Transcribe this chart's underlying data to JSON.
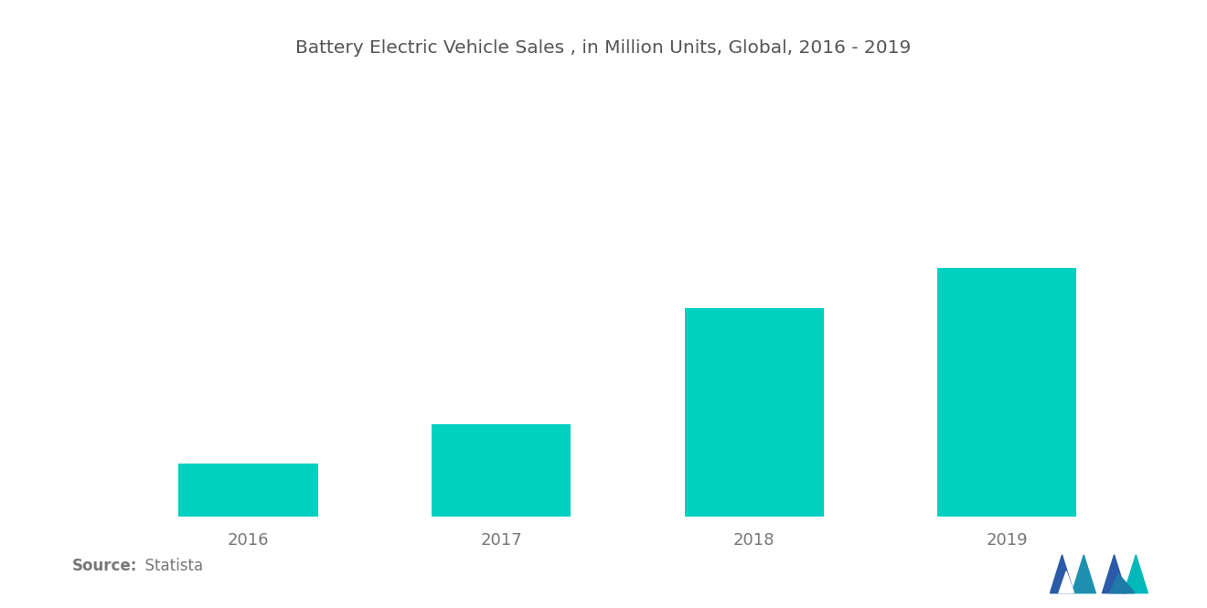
{
  "title": "Battery Electric Vehicle Sales , in Million Units, Global, 2016 - 2019",
  "categories": [
    "2016",
    "2017",
    "2018",
    "2019"
  ],
  "values": [
    0.32,
    0.56,
    1.26,
    1.5
  ],
  "bar_color": "#00D0C0",
  "background_color": "#ffffff",
  "title_fontsize": 14.5,
  "title_color": "#555555",
  "tick_label_fontsize": 13,
  "tick_label_color": "#777777",
  "source_bold": "Source:",
  "source_normal": "  Statista",
  "source_fontsize": 12,
  "source_color": "#777777",
  "ylim": [
    0,
    2.2
  ],
  "bar_width": 0.55,
  "spine_color": "#cccccc",
  "logo_left_color": "#2E5EA8",
  "logo_mid_color": "#2E7BA8",
  "logo_right_color": "#00B4B4"
}
